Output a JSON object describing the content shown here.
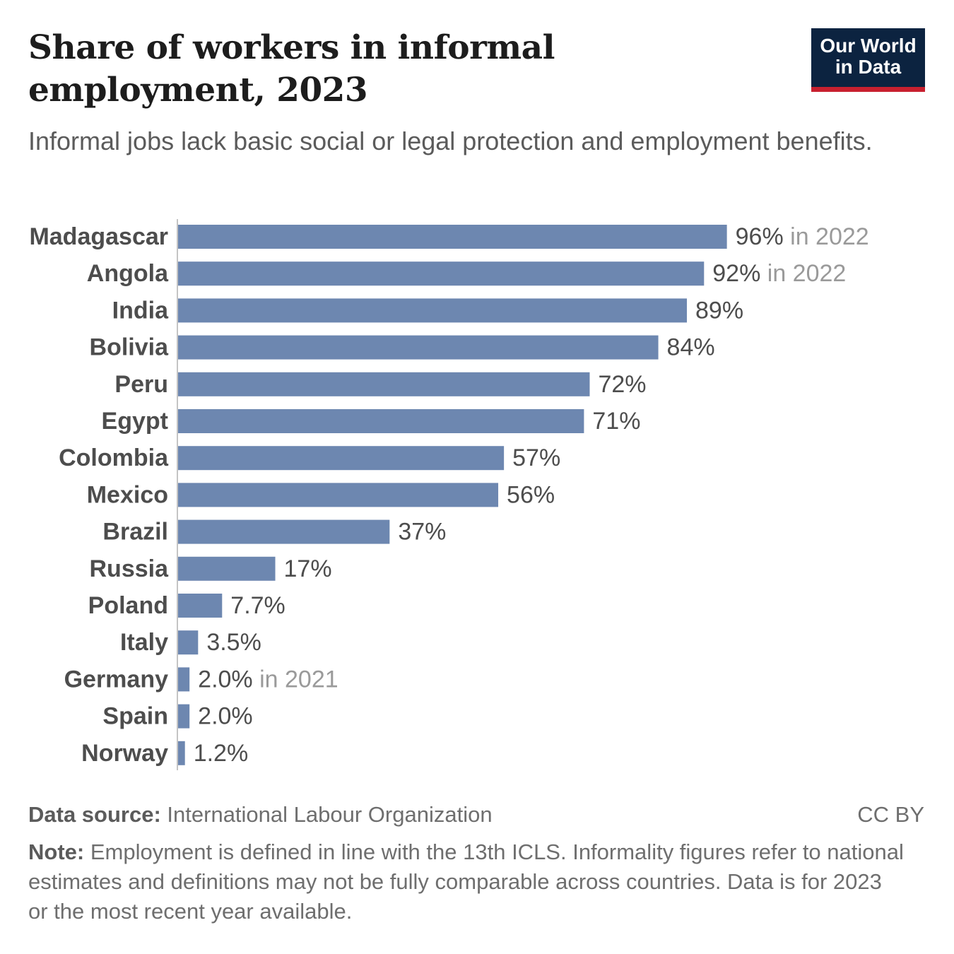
{
  "header": {
    "title": "Share of workers in informal employment, 2023",
    "subtitle": "Informal jobs lack basic social or legal protection and employment benefits."
  },
  "logo": {
    "line1": "Our World",
    "line2": "in Data"
  },
  "footer": {
    "source_label": "Data source:",
    "source_text": "International Labour Organization",
    "license": "CC BY",
    "note_label": "Note:",
    "note_text": "Employment is defined in line with the 13th ICLS. Informality figures refer to national estimates and definitions may not be fully comparable across countries. Data is for 2023 or the most recent year available."
  },
  "colors": {
    "bar": "#6d87b0",
    "label": "#4d4d4d",
    "value": "#4d4d4d",
    "year_note": "#9a9a9a",
    "axis": "#b0b0b0"
  },
  "chart_data": {
    "type": "bar",
    "orientation": "horizontal",
    "unit": "%",
    "xlim": [
      0,
      100
    ],
    "categories": [
      "Madagascar",
      "Angola",
      "India",
      "Bolivia",
      "Peru",
      "Egypt",
      "Colombia",
      "Mexico",
      "Brazil",
      "Russia",
      "Poland",
      "Italy",
      "Germany",
      "Spain",
      "Norway"
    ],
    "values": [
      96,
      92,
      89,
      84,
      72,
      71,
      57,
      56,
      37,
      17,
      7.7,
      3.5,
      2.0,
      2.0,
      1.2
    ],
    "value_labels": [
      "96%",
      "92%",
      "89%",
      "84%",
      "72%",
      "71%",
      "57%",
      "56%",
      "37%",
      "17%",
      "7.7%",
      "3.5%",
      "2.0%",
      "2.0%",
      "1.2%"
    ],
    "year_notes": [
      "in 2022",
      "in 2022",
      "",
      "",
      "",
      "",
      "",
      "",
      "",
      "",
      "",
      "",
      "in 2021",
      "",
      ""
    ]
  }
}
